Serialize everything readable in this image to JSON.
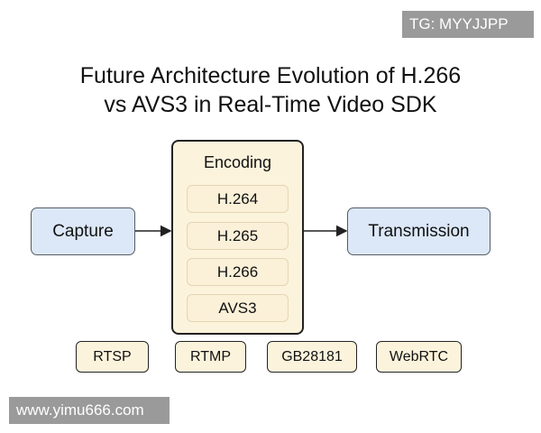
{
  "watermarks": {
    "top_right": "TG: MYYJJPP",
    "bottom_left": "www.yimu666.com"
  },
  "title": {
    "line1": "Future Architecture Evolution of H.266",
    "line2": "vs AVS3 in Real-Time Video SDK"
  },
  "capture": "Capture",
  "encoding": {
    "label": "Encoding",
    "codecs": [
      "H.264",
      "H.265",
      "H.266",
      "AVS3"
    ]
  },
  "transmission": "Transmission",
  "protocols": [
    "RTSP",
    "RTMP",
    "GB28181",
    "WebRTC"
  ],
  "colors": {
    "stage_fill": "#dce8f8",
    "encoding_fill": "#fcf3dc"
  }
}
